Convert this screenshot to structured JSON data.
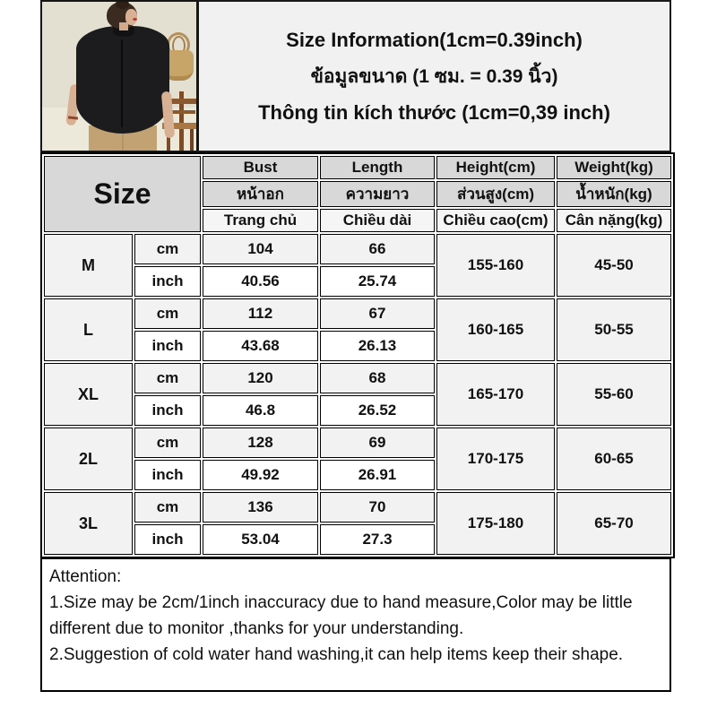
{
  "title": {
    "line1_en": "Size Information(1cm=0.39inch)",
    "line2_th": "ข้อมูลขนาด (1 ซม. = 0.39 นิ้ว)",
    "line3_vi": "Thông tin kích thước (1cm=0,39 inch)"
  },
  "product_image": {
    "description": "model wearing black short-sleeve blouse with khaki pants, straw bag and wooden chair in background"
  },
  "table": {
    "size_label": "Size",
    "headers": {
      "en": [
        "Bust",
        "Length",
        "Height(cm)",
        "Weight(kg)"
      ],
      "th": [
        "หน้าอก",
        "ความยาว",
        "ส่วนสูง(cm)",
        "น้ำหนัก(kg)"
      ],
      "vi": [
        "Trang chủ",
        "Chiều dài",
        "Chiều cao(cm)",
        "Cân nặng(kg)"
      ]
    },
    "unit_labels": {
      "cm": "cm",
      "inch": "inch"
    },
    "rows": [
      {
        "size": "M",
        "cm": [
          "104",
          "66"
        ],
        "inch": [
          "40.56",
          "25.74"
        ],
        "height": "155-160",
        "weight": "45-50"
      },
      {
        "size": "L",
        "cm": [
          "112",
          "67"
        ],
        "inch": [
          "43.68",
          "26.13"
        ],
        "height": "160-165",
        "weight": "50-55"
      },
      {
        "size": "XL",
        "cm": [
          "120",
          "68"
        ],
        "inch": [
          "46.8",
          "26.52"
        ],
        "height": "165-170",
        "weight": "55-60"
      },
      {
        "size": "2L",
        "cm": [
          "128",
          "69"
        ],
        "inch": [
          "49.92",
          "26.91"
        ],
        "height": "170-175",
        "weight": "60-65"
      },
      {
        "size": "3L",
        "cm": [
          "136",
          "70"
        ],
        "inch": [
          "53.04",
          "27.3"
        ],
        "height": "175-180",
        "weight": "65-70"
      }
    ]
  },
  "attention": {
    "title": "Attention:",
    "notes": [
      "1.Size may be 2cm/1inch inaccuracy due to hand measure,Color may be little different due to monitor ,thanks for your understanding.",
      "2.Suggestion of cold water hand washing,it can help items keep their shape."
    ]
  },
  "colors": {
    "title_box_bg": "#f1f1f1",
    "header_cell_bg": "#d8d8d8",
    "header_vi_cell_bg": "#f5f5f5",
    "size_label_cell_bg": "#d6d6d6",
    "cm_row_bg": "#f2f2f2",
    "inch_row_bg": "#ffffff",
    "border": "#000000",
    "photo_wall": "#e3e0d2",
    "blouse": "#1c1c1e",
    "pants": "#c2a272"
  },
  "chart_data": {
    "type": "table",
    "title": "Size Information(1cm=0.39inch)",
    "columns": [
      "Size",
      "Unit",
      "Bust",
      "Length",
      "Height(cm)",
      "Weight(kg)"
    ],
    "rows": [
      [
        "M",
        "cm",
        104,
        66,
        "155-160",
        "45-50"
      ],
      [
        "M",
        "inch",
        40.56,
        25.74,
        "155-160",
        "45-50"
      ],
      [
        "L",
        "cm",
        112,
        67,
        "160-165",
        "50-55"
      ],
      [
        "L",
        "inch",
        43.68,
        26.13,
        "160-165",
        "50-55"
      ],
      [
        "XL",
        "cm",
        120,
        68,
        "165-170",
        "55-60"
      ],
      [
        "XL",
        "inch",
        46.8,
        26.52,
        "165-170",
        "55-60"
      ],
      [
        "2L",
        "cm",
        128,
        69,
        "170-175",
        "60-65"
      ],
      [
        "2L",
        "inch",
        49.92,
        26.91,
        "170-175",
        "60-65"
      ],
      [
        "3L",
        "cm",
        136,
        70,
        "175-180",
        "65-70"
      ],
      [
        "3L",
        "inch",
        53.04,
        27.3,
        "175-180",
        "65-70"
      ]
    ]
  }
}
